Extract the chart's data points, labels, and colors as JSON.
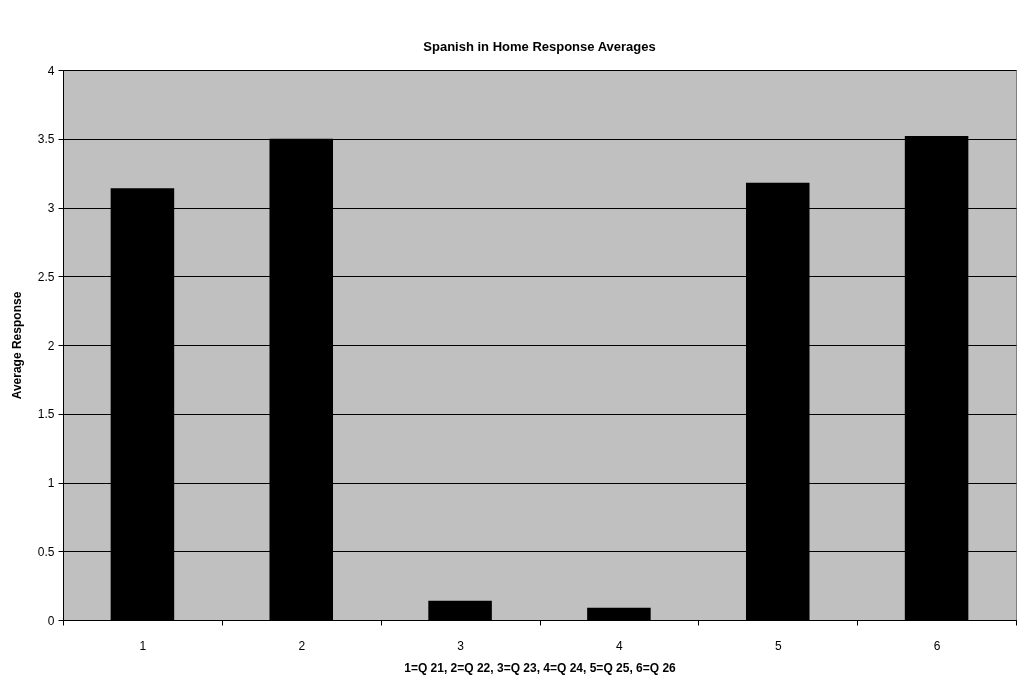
{
  "chart_data": {
    "type": "bar",
    "title": "Spanish in Home Response Averages",
    "xlabel": "1=Q 21, 2=Q 22, 3=Q 23, 4=Q 24, 5=Q 25, 6=Q 26",
    "ylabel": "Average Response",
    "categories": [
      "1",
      "2",
      "3",
      "4",
      "5",
      "6"
    ],
    "values": [
      3.14,
      3.5,
      0.14,
      0.09,
      3.18,
      3.52
    ],
    "color": "#000000",
    "ylim": [
      0,
      4
    ],
    "yticks": [
      0,
      0.5,
      1,
      1.5,
      2,
      2.5,
      3,
      3.5,
      4
    ],
    "grid": "y"
  }
}
